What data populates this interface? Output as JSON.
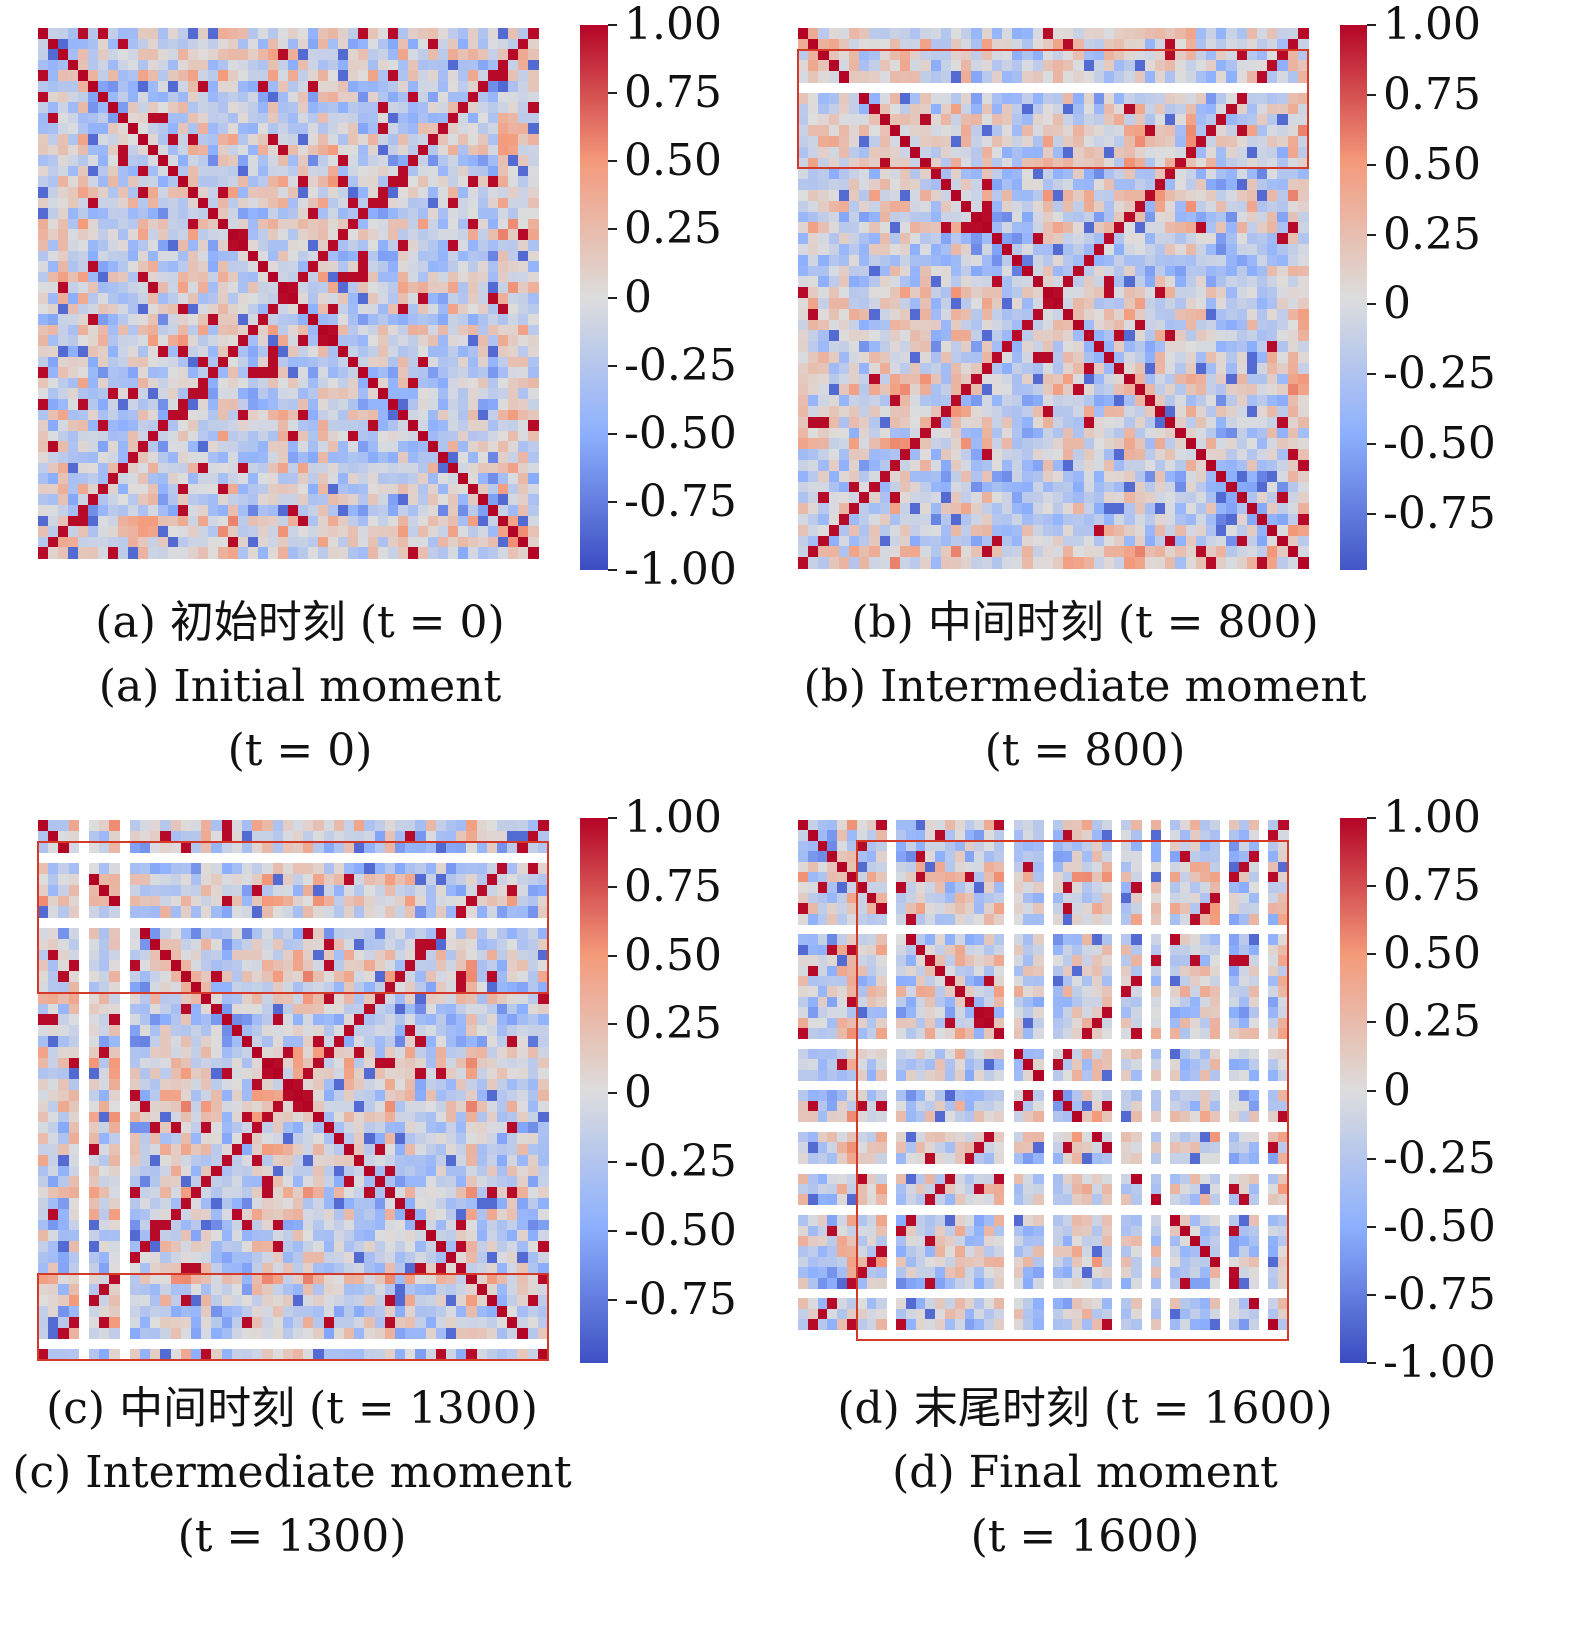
{
  "chart_data": [
    {
      "type": "heatmap",
      "panel": "a",
      "caption_cn": "(a) 初始时刻 (t = 0)",
      "caption_en": "(a) Initial moment",
      "caption_t": "(t = 0)",
      "size": 50,
      "blank_rows": [],
      "blank_cols": [],
      "highlight_boxes": [],
      "colorbar": {
        "ticks": [
          "1.00",
          "0.75",
          "0.50",
          "0.25",
          "0",
          "-0.25",
          "-0.50",
          "-0.75",
          "-1.00"
        ],
        "vmin": -1.0,
        "vmax": 1.0
      }
    },
    {
      "type": "heatmap",
      "panel": "b",
      "caption_cn": "(b) 中间时刻 (t = 800)",
      "caption_en": "(b) Intermediate moment",
      "caption_t": "(t = 800)",
      "size": 50,
      "blank_rows": [
        5
      ],
      "blank_cols": [],
      "highlight_boxes": [
        {
          "rows": [
            2,
            12
          ],
          "cols": [
            0,
            49
          ]
        }
      ],
      "colorbar": {
        "ticks": [
          "1.00",
          "0.75",
          "0.50",
          "0.25",
          "0",
          "-0.25",
          "-0.50",
          "-0.75"
        ],
        "vmin": -0.95,
        "vmax": 1.0
      }
    },
    {
      "type": "heatmap",
      "panel": "c",
      "caption_cn": "(c) 中间时刻 (t = 1300)",
      "caption_en": "(c) Intermediate moment",
      "caption_t": "(t = 1300)",
      "size": 50,
      "blank_rows": [
        3,
        9,
        48
      ],
      "blank_cols": [
        4,
        8
      ],
      "highlight_boxes": [
        {
          "rows": [
            2,
            15
          ],
          "cols": [
            0,
            49
          ]
        },
        {
          "rows": [
            42,
            49
          ],
          "cols": [
            0,
            49
          ]
        }
      ],
      "colorbar": {
        "ticks": [
          "1.00",
          "0.75",
          "0.50",
          "0.25",
          "0",
          "-0.25",
          "-0.50",
          "-0.75"
        ],
        "vmin": -0.98,
        "vmax": 1.0
      }
    },
    {
      "type": "heatmap",
      "panel": "d",
      "caption_cn": "(d) 末尾时刻 (t = 1600)",
      "caption_en": "(d) Final moment",
      "caption_t": "(t = 1600)",
      "size": 50,
      "blank_rows": [
        10,
        21,
        25,
        29,
        33,
        37,
        45,
        49
      ],
      "blank_cols": [
        9,
        21,
        25,
        32,
        35,
        37,
        43,
        47
      ],
      "highlight_boxes": [
        {
          "rows": [
            2,
            49
          ],
          "cols": [
            6,
            49
          ]
        }
      ],
      "colorbar": {
        "ticks": [
          "1.00",
          "0.75",
          "0.50",
          "0.25",
          "0",
          "-0.25",
          "-0.50",
          "-0.75",
          "-1.00"
        ],
        "vmin": -1.0,
        "vmax": 1.0
      }
    }
  ],
  "colormap": {
    "name": "coolwarm",
    "low": "#3b4cc0",
    "mid": "#dddddd",
    "high": "#b40426"
  }
}
